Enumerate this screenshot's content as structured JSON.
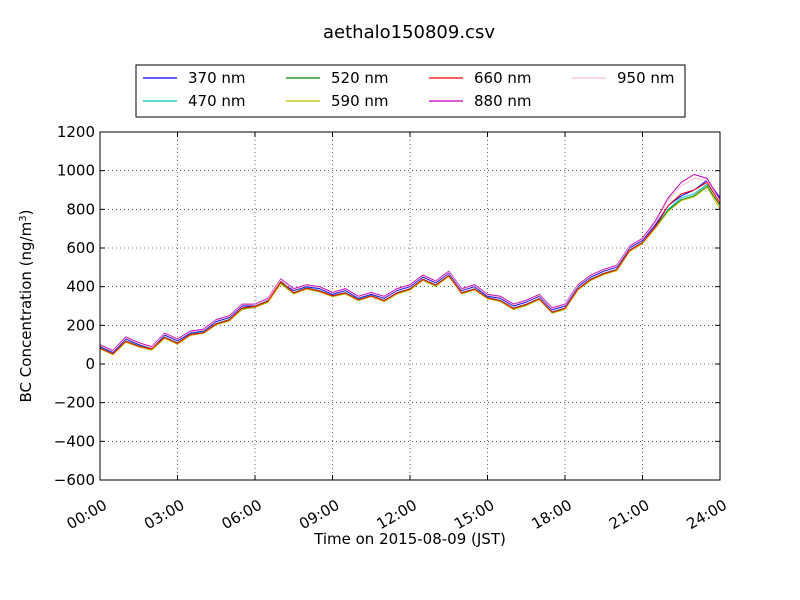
{
  "chart_data": {
    "type": "line",
    "title": "aethalo150809.csv",
    "xlabel": "Time on 2015-08-09 (JST)",
    "ylabel_main": "BC Concentration (ng/m",
    "ylabel_sup": "3",
    "ylabel_end": ")",
    "xlim_hours": [
      0,
      24
    ],
    "ylim": [
      -600,
      1200
    ],
    "grid": true,
    "legend_placement": "top-center, above plot, 4 columns",
    "x_ticks": [
      {
        "hour": 0,
        "label": "00:00"
      },
      {
        "hour": 3,
        "label": "03:00"
      },
      {
        "hour": 6,
        "label": "06:00"
      },
      {
        "hour": 9,
        "label": "09:00"
      },
      {
        "hour": 12,
        "label": "12:00"
      },
      {
        "hour": 15,
        "label": "15:00"
      },
      {
        "hour": 18,
        "label": "18:00"
      },
      {
        "hour": 21,
        "label": "21:00"
      },
      {
        "hour": 24,
        "label": "24:00"
      }
    ],
    "y_ticks": [
      {
        "value": 1200,
        "label": "1200"
      },
      {
        "value": 1000,
        "label": "1000"
      },
      {
        "value": 800,
        "label": "800"
      },
      {
        "value": 600,
        "label": "600"
      },
      {
        "value": 400,
        "label": "400"
      },
      {
        "value": 200,
        "label": "200"
      },
      {
        "value": 0,
        "label": "0"
      },
      {
        "value": -200,
        "label": "−200"
      },
      {
        "value": -400,
        "label": "−400"
      },
      {
        "value": -600,
        "label": "−600"
      }
    ],
    "x": [
      0,
      0.5,
      1,
      1.5,
      2,
      2.5,
      3,
      3.5,
      4,
      4.5,
      5,
      5.5,
      6,
      6.5,
      7,
      7.5,
      8,
      8.5,
      9,
      9.5,
      10,
      10.5,
      11,
      11.5,
      12,
      12.5,
      13,
      13.5,
      14,
      14.5,
      15,
      15.5,
      16,
      16.5,
      17,
      17.5,
      18,
      18.5,
      19,
      19.5,
      20,
      20.5,
      21,
      21.5,
      22,
      22.5,
      23,
      23.5,
      24
    ],
    "series": [
      {
        "name": "370 nm",
        "color": "#0000ff",
        "values": [
          90,
          60,
          130,
          100,
          80,
          150,
          120,
          160,
          170,
          220,
          240,
          300,
          300,
          330,
          420,
          380,
          400,
          390,
          360,
          380,
          340,
          360,
          340,
          380,
          400,
          450,
          420,
          470,
          380,
          400,
          350,
          340,
          300,
          320,
          350,
          280,
          300,
          400,
          450,
          480,
          500,
          600,
          640,
          720,
          820,
          870,
          900,
          950,
          860
        ]
      },
      {
        "name": "470 nm",
        "color": "#00bfbf",
        "values": [
          85,
          55,
          120,
          95,
          80,
          140,
          110,
          155,
          165,
          210,
          230,
          290,
          300,
          330,
          430,
          370,
          395,
          380,
          355,
          370,
          335,
          355,
          330,
          370,
          390,
          440,
          410,
          460,
          370,
          390,
          345,
          330,
          290,
          310,
          340,
          270,
          290,
          390,
          440,
          470,
          490,
          590,
          630,
          710,
          800,
          860,
          880,
          930,
          840
        ]
      },
      {
        "name": "520 nm",
        "color": "#008000",
        "values": [
          80,
          50,
          115,
          90,
          75,
          135,
          105,
          150,
          160,
          205,
          225,
          285,
          295,
          320,
          420,
          365,
          390,
          375,
          350,
          365,
          330,
          350,
          325,
          365,
          385,
          435,
          405,
          455,
          365,
          385,
          340,
          325,
          285,
          305,
          335,
          265,
          285,
          385,
          435,
          465,
          485,
          585,
          625,
          705,
          795,
          850,
          870,
          920,
          820
        ]
      },
      {
        "name": "590 nm",
        "color": "#bfbf00",
        "values": [
          78,
          48,
          112,
          88,
          72,
          132,
          102,
          148,
          158,
          202,
          222,
          282,
          292,
          318,
          415,
          362,
          388,
          372,
          348,
          362,
          328,
          348,
          322,
          362,
          382,
          432,
          402,
          452,
          362,
          382,
          338,
          322,
          282,
          302,
          332,
          262,
          282,
          382,
          432,
          462,
          482,
          582,
          622,
          702,
          790,
          845,
          865,
          915,
          800
        ]
      },
      {
        "name": "660 nm",
        "color": "#ff0000",
        "values": [
          82,
          52,
          118,
          92,
          78,
          138,
          108,
          152,
          162,
          208,
          228,
          290,
          298,
          325,
          425,
          368,
          392,
          378,
          352,
          368,
          332,
          352,
          328,
          368,
          388,
          438,
          408,
          458,
          368,
          388,
          342,
          328,
          288,
          308,
          338,
          268,
          288,
          388,
          438,
          468,
          488,
          588,
          628,
          710,
          820,
          880,
          900,
          940,
          830
        ]
      },
      {
        "name": "880 nm",
        "color": "#bf00bf",
        "values": [
          100,
          70,
          140,
          110,
          90,
          160,
          130,
          170,
          180,
          230,
          250,
          310,
          310,
          340,
          440,
          390,
          410,
          400,
          370,
          390,
          350,
          370,
          350,
          390,
          410,
          460,
          430,
          480,
          390,
          410,
          360,
          350,
          310,
          330,
          360,
          290,
          310,
          410,
          460,
          490,
          510,
          610,
          650,
          740,
          860,
          940,
          980,
          960,
          850
        ]
      },
      {
        "name": "950 nm",
        "color": "#ffc0cb",
        "values": [
          95,
          65,
          135,
          105,
          85,
          155,
          125,
          165,
          175,
          225,
          245,
          305,
          305,
          335,
          435,
          385,
          405,
          395,
          365,
          385,
          345,
          365,
          345,
          385,
          405,
          455,
          425,
          475,
          385,
          405,
          355,
          345,
          305,
          325,
          355,
          285,
          305,
          405,
          455,
          485,
          505,
          605,
          645,
          730,
          850,
          920,
          960,
          950,
          840
        ]
      }
    ]
  }
}
